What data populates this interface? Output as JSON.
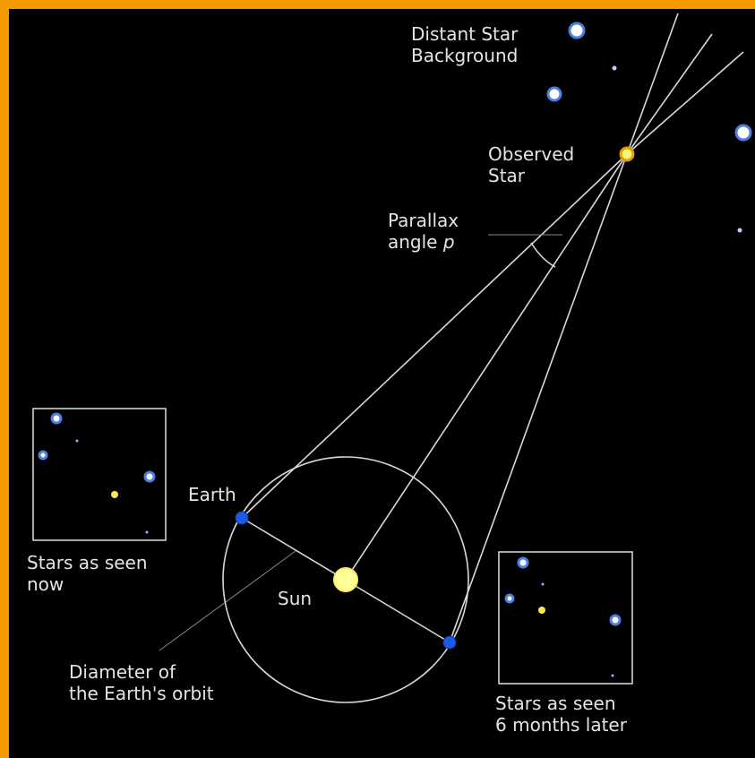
{
  "labels": {
    "distant_star": [
      "Distant Star",
      "Background"
    ],
    "observed_star": [
      "Observed",
      "Star"
    ],
    "parallax": {
      "lines": [
        "Parallax",
        "angle"
      ],
      "symbol": "p"
    },
    "earth": "Earth",
    "sun": "Sun",
    "now": [
      "Stars as seen",
      "now"
    ],
    "diameter": [
      "Diameter of",
      "the Earth's orbit"
    ],
    "later": [
      "Stars as seen",
      "6 months later"
    ]
  }
}
